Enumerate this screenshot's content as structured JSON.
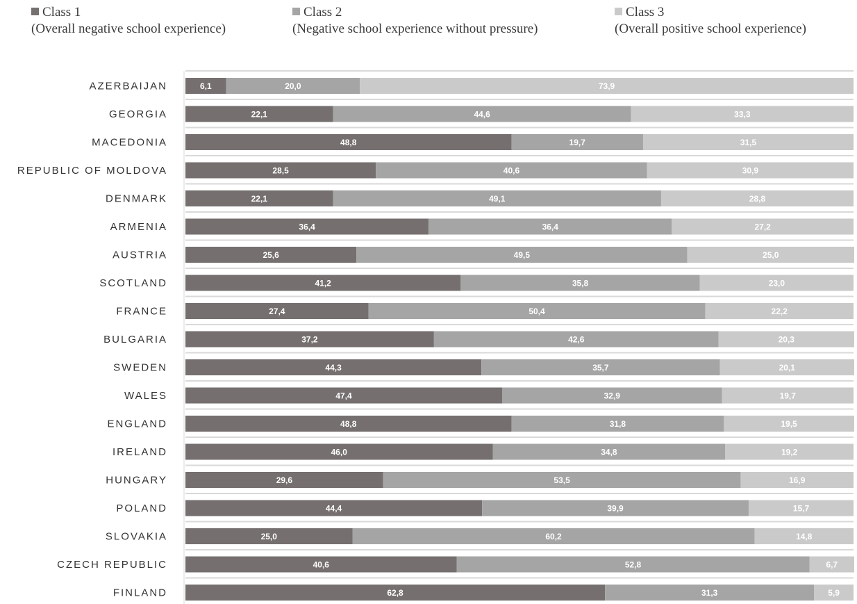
{
  "chart_data": {
    "type": "bar",
    "orientation": "horizontal",
    "stacked": true,
    "xlim": [
      0,
      100
    ],
    "grid": true,
    "legend_position": "top",
    "categories": [
      "AZERBAIJAN",
      "GEORGIA",
      "MACEDONIA",
      "REPUBLIC OF MOLDOVA",
      "DENMARK",
      "ARMENIA",
      "AUSTRIA",
      "SCOTLAND",
      "FRANCE",
      "BULGARIA",
      "SWEDEN",
      "WALES",
      "ENGLAND",
      "IRELAND",
      "HUNGARY",
      "POLAND",
      "SLOVAKIA",
      "CZECH REPUBLIC",
      "FINLAND"
    ],
    "series": [
      {
        "name": "Class 1",
        "description": "(Overall negative school experience)",
        "color": "#756f6f",
        "values": [
          6.1,
          22.1,
          48.8,
          28.5,
          22.1,
          36.4,
          25.6,
          41.2,
          27.4,
          37.2,
          44.3,
          47.4,
          48.8,
          46.0,
          29.6,
          44.4,
          25.0,
          40.6,
          62.8
        ],
        "labels": [
          "6,1",
          "22,1",
          "48,8",
          "28,5",
          "22,1",
          "36,4",
          "25,6",
          "41,2",
          "27,4",
          "37,2",
          "44,3",
          "47,4",
          "48,8",
          "46,0",
          "29,6",
          "44,4",
          "25,0",
          "40,6",
          "62,8"
        ]
      },
      {
        "name": "Class 2",
        "description": "(Negative school experience without pressure)",
        "color": "#a6a5a5",
        "values": [
          20.0,
          44.6,
          19.7,
          40.6,
          49.1,
          36.4,
          49.5,
          35.8,
          50.4,
          42.6,
          35.7,
          32.9,
          31.8,
          34.8,
          53.5,
          39.9,
          60.2,
          52.8,
          31.3
        ],
        "labels": [
          "20,0",
          "44,6",
          "19,7",
          "40,6",
          "49,1",
          "36,4",
          "49,5",
          "35,8",
          "50,4",
          "42,6",
          "35,7",
          "32,9",
          "31,8",
          "34,8",
          "53,5",
          "39,9",
          "60,2",
          "52,8",
          "31,3"
        ]
      },
      {
        "name": "Class 3",
        "description": "(Overall positive school experience)",
        "color": "#cbcaca",
        "values": [
          73.9,
          33.3,
          31.5,
          30.9,
          28.8,
          27.2,
          25.0,
          23.0,
          22.2,
          20.3,
          20.1,
          19.7,
          19.5,
          19.2,
          16.9,
          15.7,
          14.8,
          6.7,
          5.9
        ],
        "labels": [
          "73,9",
          "33,3",
          "31,5",
          "30,9",
          "28,8",
          "27,2",
          "25,0",
          "23,0",
          "22,2",
          "20,3",
          "20,1",
          "19,7",
          "19,5",
          "19,2",
          "16,9",
          "15,7",
          "14,8",
          "6,7",
          "5,9"
        ]
      }
    ]
  }
}
